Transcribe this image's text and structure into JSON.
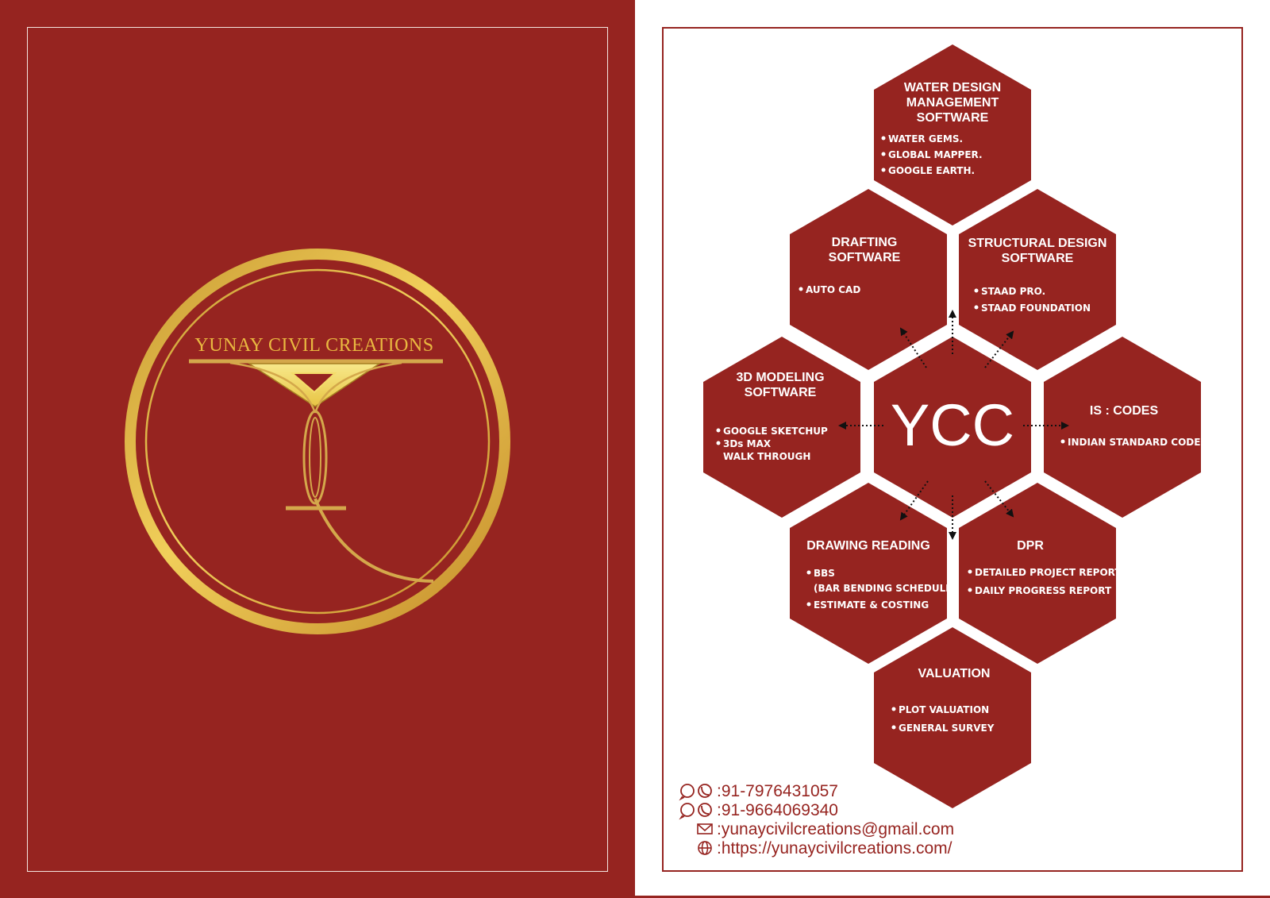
{
  "brand": {
    "name": "YUNAY CIVIL CREATIONS",
    "center_label": "YCC",
    "colors": {
      "maroon": "#962420",
      "gold": "#e3b341",
      "light_gold": "#f4dc6a",
      "white": "#ffffff"
    }
  },
  "hexagons": {
    "water": {
      "title": [
        "WATER DESIGN",
        "MANAGEMENT",
        "SOFTWARE"
      ],
      "items": [
        "WATER  GEMS.",
        "GLOBAL  MAPPER.",
        "GOOGLE  EARTH."
      ]
    },
    "drafting": {
      "title": [
        "DRAFTING",
        "SOFTWARE"
      ],
      "items": [
        "AUTO CAD"
      ]
    },
    "structural": {
      "title": [
        "STRUCTURAL DESIGN",
        "SOFTWARE"
      ],
      "items": [
        "STAAD PRO.",
        "STAAD FOUNDATION"
      ]
    },
    "modeling": {
      "title": [
        "3D MODELING",
        "SOFTWARE"
      ],
      "items": [
        "GOOGLE SKETCHUP",
        "3Ds MAX"
      ],
      "extra": "WALK THROUGH"
    },
    "codes": {
      "title": [
        "IS : CODES"
      ],
      "items": [
        "INDIAN STANDARD CODES"
      ]
    },
    "drawing": {
      "title": [
        "DRAWING READING"
      ],
      "items": [
        "BBS",
        "ESTIMATE & COSTING"
      ],
      "sub": "(BAR BENDING SCHEDULE)"
    },
    "dpr": {
      "title": [
        "DPR"
      ],
      "items": [
        "DETAILED PROJECT REPORT",
        "DAILY PROGRESS REPORT"
      ]
    },
    "valuation": {
      "title": [
        "VALUATION"
      ],
      "items": [
        "PLOT  VALUATION",
        "GENERAL SURVEY"
      ]
    }
  },
  "contact": {
    "phone1": ":91-7976431057",
    "phone2": ":91-9664069340",
    "email": ":yunaycivilcreations@gmail.com",
    "website": ":https://yunaycivilcreations.com/",
    "icons": [
      "whatsapp-icon",
      "phone-icon",
      "mail-icon",
      "globe-icon"
    ]
  }
}
